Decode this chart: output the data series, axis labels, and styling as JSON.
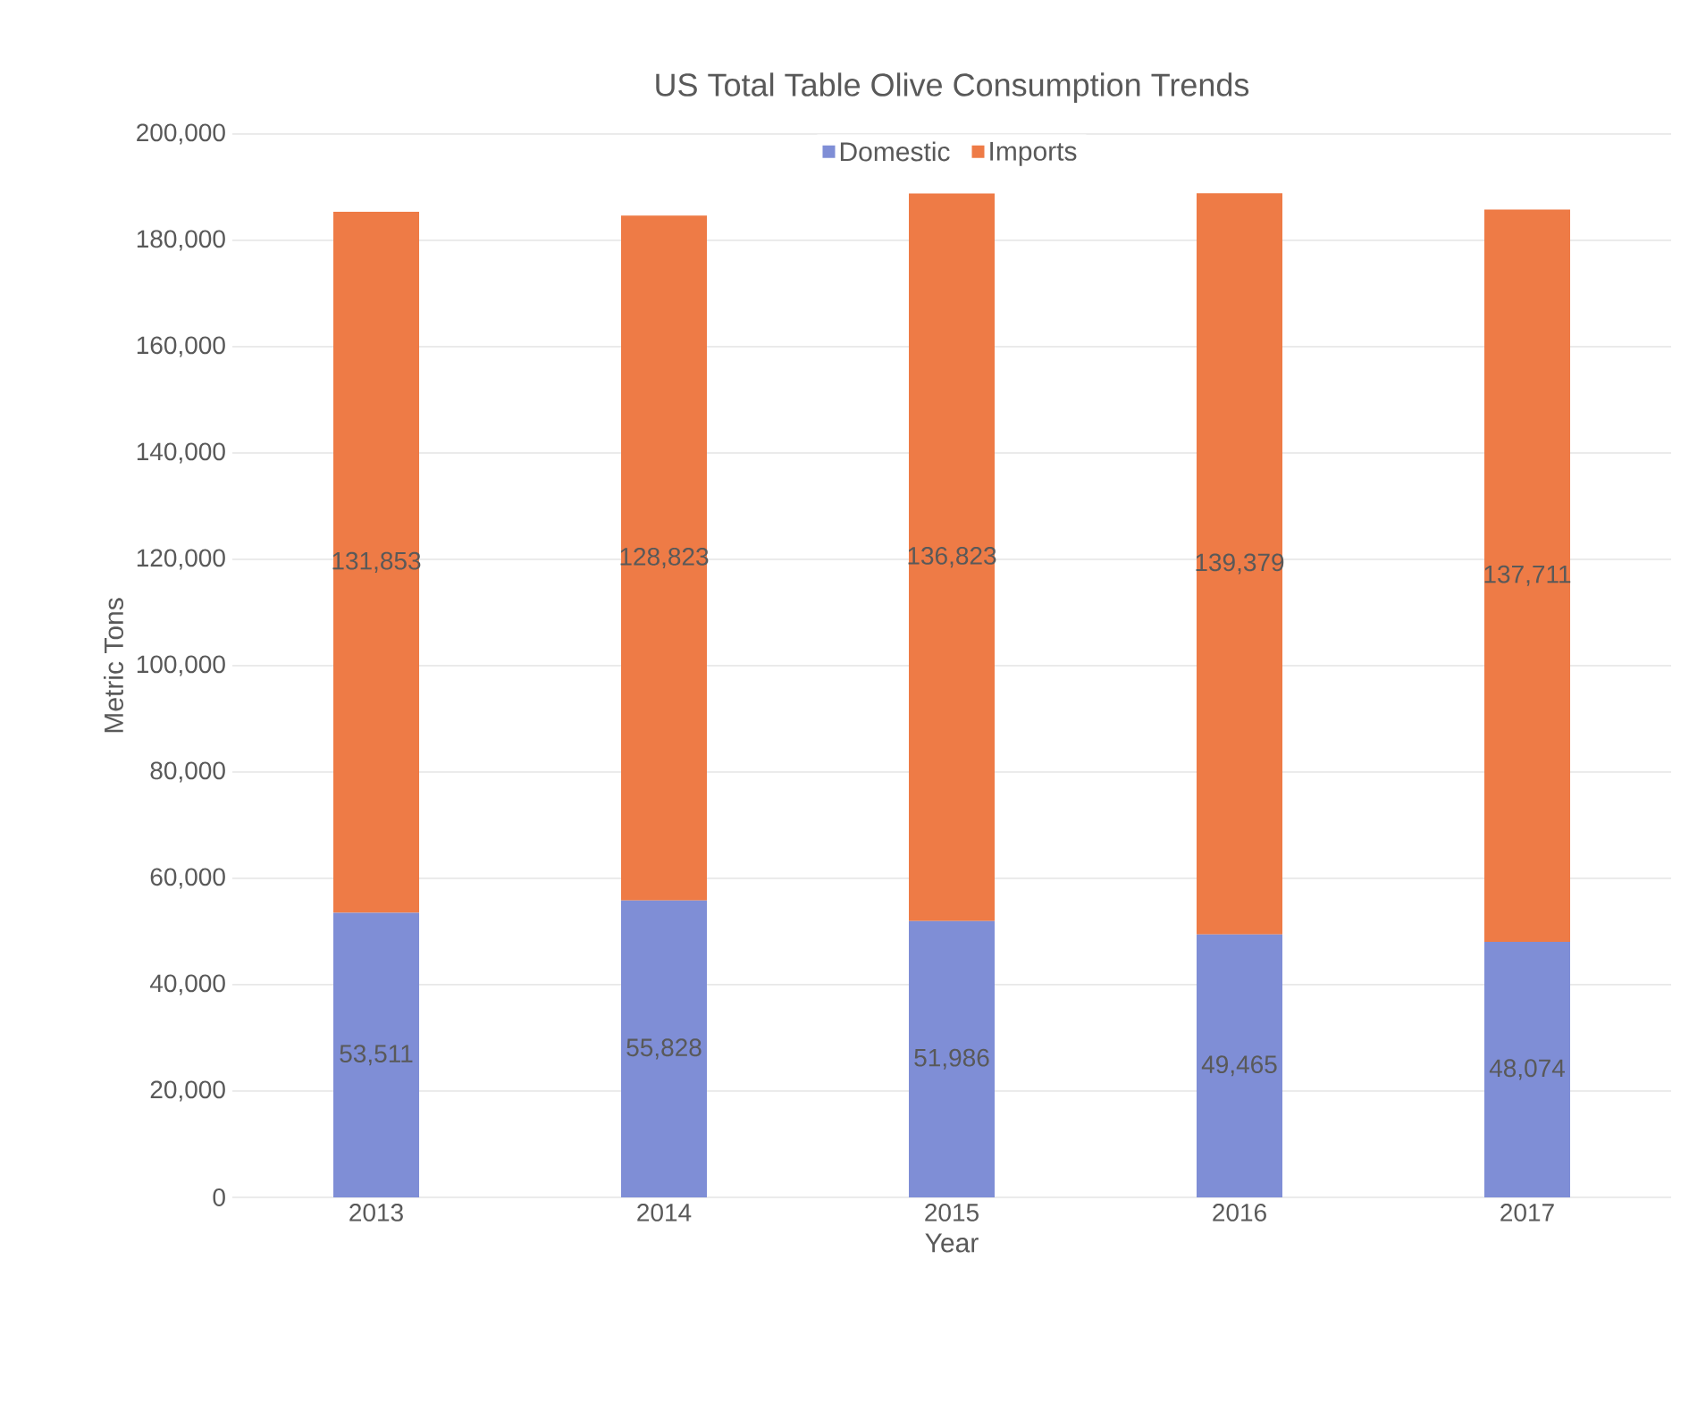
{
  "chart_data": {
    "type": "bar",
    "stacked": true,
    "title": "US Total Table Olive Consumption Trends",
    "xlabel": "Year",
    "ylabel": "Metric Tons",
    "categories": [
      "2013",
      "2014",
      "2015",
      "2016",
      "2017"
    ],
    "series": [
      {
        "name": "Domestic",
        "color": "#7f8ed6",
        "values": [
          53511,
          55828,
          51986,
          49465,
          48074
        ],
        "value_labels": [
          "53,511",
          "55,828",
          "51,986",
          "49,465",
          "48,074"
        ]
      },
      {
        "name": "Imports",
        "color": "#ee7b46",
        "values": [
          131853,
          128823,
          136823,
          139379,
          137711
        ],
        "value_labels": [
          "131,853",
          "128,823",
          "136,823",
          "139,379",
          "137,711"
        ]
      }
    ],
    "ylim": [
      0,
      200000
    ],
    "yticks": [
      {
        "value": 0,
        "label": "0"
      },
      {
        "value": 20000,
        "label": "20,000"
      },
      {
        "value": 40000,
        "label": "40,000"
      },
      {
        "value": 60000,
        "label": "60,000"
      },
      {
        "value": 80000,
        "label": "80,000"
      },
      {
        "value": 100000,
        "label": "100,000"
      },
      {
        "value": 120000,
        "label": "120,000"
      },
      {
        "value": 140000,
        "label": "140,000"
      },
      {
        "value": 160000,
        "label": "160,000"
      },
      {
        "value": 180000,
        "label": "180,000"
      },
      {
        "value": 200000,
        "label": "200,000"
      }
    ],
    "grid": "y",
    "legend": "top"
  }
}
